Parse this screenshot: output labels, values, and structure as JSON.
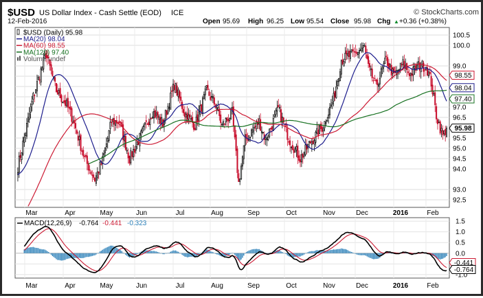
{
  "header": {
    "symbol": "$USD",
    "name": "US Dollar Index - Cash Settle (EOD)",
    "exchange": "ICE",
    "date": "12-Feb-2016",
    "brand": "© StockCharts.com",
    "ohlc": {
      "open_label": "Open",
      "open": "95.69",
      "high_label": "High",
      "high": "96.25",
      "low_label": "Low",
      "low": "95.54",
      "close_label": "Close",
      "close": "95.98",
      "chg_label": "Chg",
      "chg": "+0.36 (+0.38%)",
      "chg_arrow": "▲"
    }
  },
  "legend": [
    {
      "label": "$USD (Daily) 95.98",
      "color": "#000000",
      "icon": "candle-icon"
    },
    {
      "label": "MA(20) 98.04",
      "color": "#1c1c8c",
      "icon": "line-icon"
    },
    {
      "label": "MA(60) 98.55",
      "color": "#cc1a33",
      "icon": "line-icon"
    },
    {
      "label": "MA(120) 97.40",
      "color": "#15701f",
      "icon": "line-icon"
    },
    {
      "label": "Volume undef",
      "color": "#555555",
      "icon": "volume-icon"
    }
  ],
  "macd_legend": {
    "title": "MACD(12,26,9)",
    "macd": "-0.764",
    "signal": "-0.441",
    "hist": "-0.323",
    "macd_color": "#000000",
    "signal_color": "#cc1a33",
    "hist_color": "#2a7fb8"
  },
  "chart_data": [
    {
      "type": "candlestick",
      "title": "$USD US Dollar Index - Cash Settle (EOD) ICE",
      "x_tick_labels": [
        "Mar",
        "Apr",
        "May",
        "Jun",
        "Jul",
        "Aug",
        "Sep",
        "Oct",
        "Nov",
        "Dec",
        "2016",
        "Feb"
      ],
      "y_ticks": [
        92.5,
        93.0,
        94.0,
        94.5,
        95.0,
        95.5,
        96.5,
        97.0,
        97.5,
        98.0,
        98.5,
        99.0,
        100.0,
        100.5
      ],
      "y_tick_labels": [
        "92.5",
        "93.0",
        "94.0",
        "94.5",
        "95.0",
        "95.5",
        "96.5",
        "97.0",
        "97.5",
        "98.0",
        "98.5",
        "99.0",
        "100.0",
        "100.5"
      ],
      "ylim": [
        92.2,
        100.8
      ],
      "price_anchors": [
        [
          0,
          94.1
        ],
        [
          12,
          97.5
        ],
        [
          22,
          99.6
        ],
        [
          30,
          97.8
        ],
        [
          38,
          97.1
        ],
        [
          43,
          96.4
        ],
        [
          52,
          94.5
        ],
        [
          60,
          93.5
        ],
        [
          66,
          94.4
        ],
        [
          73,
          96.3
        ],
        [
          79,
          96.3
        ],
        [
          87,
          94.5
        ],
        [
          95,
          95.5
        ],
        [
          105,
          96.8
        ],
        [
          113,
          96.2
        ],
        [
          122,
          98.1
        ],
        [
          130,
          96.7
        ],
        [
          138,
          96.1
        ],
        [
          147,
          97.8
        ],
        [
          155,
          97.0
        ],
        [
          159,
          96.1
        ],
        [
          167,
          96.7
        ],
        [
          172,
          93.3
        ],
        [
          177,
          95.4
        ],
        [
          188,
          96.3
        ],
        [
          193,
          95.4
        ],
        [
          203,
          96.9
        ],
        [
          211,
          95.5
        ],
        [
          220,
          94.5
        ],
        [
          228,
          95.3
        ],
        [
          238,
          96.1
        ],
        [
          246,
          97.4
        ],
        [
          252,
          99.3
        ],
        [
          262,
          99.6
        ],
        [
          270,
          99.9
        ],
        [
          273,
          98.9
        ],
        [
          279,
          98.0
        ],
        [
          287,
          99.3
        ],
        [
          293,
          98.5
        ],
        [
          300,
          99.1
        ],
        [
          306,
          98.6
        ],
        [
          312,
          99.0
        ],
        [
          318,
          99.0
        ],
        [
          322,
          98.2
        ],
        [
          326,
          96.6
        ],
        [
          331,
          95.6
        ],
        [
          334,
          95.98
        ]
      ],
      "series_last": [
        {
          "name": "MA(20)",
          "last": 98.04,
          "color": "#1c1c8c"
        },
        {
          "name": "MA(60)",
          "last": 98.55,
          "color": "#cc1a33"
        },
        {
          "name": "MA(120)",
          "last": 97.4,
          "color": "#15701f"
        },
        {
          "name": "$USD",
          "last": 95.98,
          "color": "#000000"
        }
      ],
      "trading_days": 335
    },
    {
      "type": "line",
      "title": "MACD(12,26,9)",
      "series": [
        {
          "name": "MACD(12,26,9)",
          "color": "#000000"
        },
        {
          "name": "signal",
          "color": "#cc1a33"
        },
        {
          "name": "histogram",
          "color": "#2a7fb8"
        }
      ],
      "y_ticks": [
        -1.0,
        -0.5,
        0.0,
        0.5,
        1.0,
        1.5
      ],
      "y_tick_labels": [
        "-1.0",
        "-0.5",
        "0.0",
        "0.5",
        "1.0",
        "1.5"
      ],
      "ylim": [
        -1.1,
        1.6
      ],
      "last_values": {
        "macd": -0.764,
        "signal": -0.441
      }
    }
  ]
}
